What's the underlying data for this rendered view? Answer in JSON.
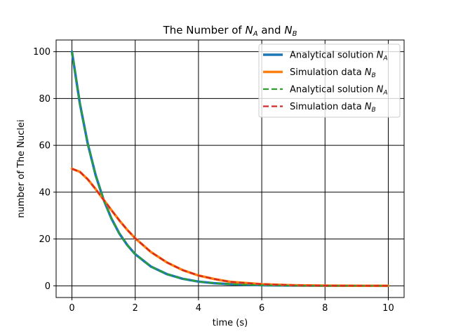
{
  "chart_data": {
    "type": "line",
    "title": "The Number of N_A and N_B",
    "title_parts": {
      "prefix": "The Number of ",
      "sym1": "N",
      "sub1": "A",
      "mid": " and ",
      "sym2": "N",
      "sub2": "B"
    },
    "xlabel": "time (s)",
    "ylabel": "number of The Nuclei",
    "xlim": [
      -0.5,
      10.5
    ],
    "ylim": [
      -5,
      105
    ],
    "xticks": [
      0,
      2,
      4,
      6,
      8,
      10
    ],
    "yticks": [
      0,
      20,
      40,
      60,
      80,
      100
    ],
    "grid": true,
    "legend_position": "top-right",
    "series": [
      {
        "name": "Analytical solution N_A",
        "label_text": "Analytical solution ",
        "sym": "N",
        "sub": "A",
        "color": "#1f77b4",
        "style": "solid",
        "x": [
          0,
          0.25,
          0.5,
          0.75,
          1,
          1.25,
          1.5,
          1.75,
          2,
          2.5,
          3,
          3.5,
          4,
          4.5,
          5,
          6,
          7,
          8,
          9,
          10
        ],
        "y": [
          100,
          77.9,
          60.7,
          47.2,
          36.8,
          28.7,
          22.3,
          17.4,
          13.5,
          8.2,
          5.0,
          3.0,
          1.8,
          1.1,
          0.7,
          0.25,
          0.09,
          0.03,
          0.01,
          0.0
        ]
      },
      {
        "name": "Simulation data N_B",
        "label_text": "Simulation data ",
        "sym": "N",
        "sub": "B",
        "color": "#ff7f0e",
        "style": "solid",
        "x": [
          0,
          0.25,
          0.5,
          0.75,
          1,
          1.25,
          1.5,
          1.75,
          2,
          2.5,
          3,
          3.5,
          4,
          4.5,
          5,
          6,
          7,
          8,
          9,
          10
        ],
        "y": [
          50,
          48.7,
          45.5,
          41.3,
          36.8,
          32.3,
          27.9,
          23.9,
          20.3,
          14.4,
          10.0,
          6.7,
          4.4,
          2.9,
          1.7,
          0.7,
          0.25,
          0.09,
          0.03,
          0.01
        ]
      },
      {
        "name": "Analytical solution N_A",
        "label_text": "Analytical solution ",
        "sym": "N",
        "sub": "A",
        "color": "#2ca02c",
        "style": "dashed",
        "x": [
          0,
          0.25,
          0.5,
          0.75,
          1,
          1.25,
          1.5,
          1.75,
          2,
          2.5,
          3,
          3.5,
          4,
          4.5,
          5,
          6,
          7,
          8,
          9,
          10
        ],
        "y": [
          100,
          77.9,
          60.7,
          47.2,
          36.8,
          28.7,
          22.3,
          17.4,
          13.5,
          8.2,
          5.0,
          3.0,
          1.8,
          1.1,
          0.7,
          0.25,
          0.09,
          0.03,
          0.01,
          0.0
        ]
      },
      {
        "name": "Simulation data N_B",
        "label_text": "Simulation data ",
        "sym": "N",
        "sub": "B",
        "color": "#d62728",
        "style": "dashed",
        "x": [
          0,
          0.25,
          0.5,
          0.75,
          1,
          1.25,
          1.5,
          1.75,
          2,
          2.5,
          3,
          3.5,
          4,
          4.5,
          5,
          6,
          7,
          8,
          9,
          10
        ],
        "y": [
          50,
          48.7,
          45.5,
          41.3,
          36.8,
          32.3,
          27.9,
          23.9,
          20.3,
          14.4,
          10.0,
          6.7,
          4.4,
          2.9,
          1.7,
          0.7,
          0.25,
          0.09,
          0.03,
          0.01
        ]
      }
    ]
  }
}
